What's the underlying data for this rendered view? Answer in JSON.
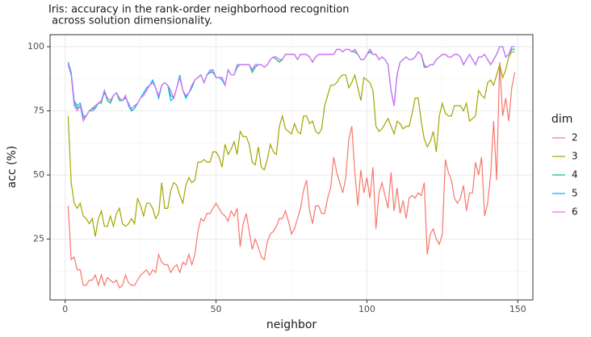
{
  "chart_data": {
    "type": "line",
    "title_lines": [
      "Iris: accuracy in the rank-order neighborhood recognition",
      " across solution dimensionality."
    ],
    "x_label": "neighbor",
    "y_label": "acc (%)",
    "legend_title": "dim",
    "legend_position": "right",
    "grid": true,
    "xlim": [
      -5,
      155
    ],
    "ylim": [
      1.3,
      104.7
    ],
    "xticks": [
      0,
      50,
      100,
      150
    ],
    "yticks": [
      25,
      50,
      75,
      100
    ],
    "x_minor_grid": [
      25,
      75,
      125
    ],
    "y_minor_grid": [
      12.5,
      37.5,
      62.5,
      87.5
    ],
    "x": [
      1,
      2,
      3,
      4,
      5,
      6,
      7,
      8,
      9,
      10,
      11,
      12,
      13,
      14,
      15,
      16,
      17,
      18,
      19,
      20,
      21,
      22,
      23,
      24,
      25,
      26,
      27,
      28,
      29,
      30,
      31,
      32,
      33,
      34,
      35,
      36,
      37,
      38,
      39,
      40,
      41,
      42,
      43,
      44,
      45,
      46,
      47,
      48,
      49,
      50,
      51,
      52,
      53,
      54,
      55,
      56,
      57,
      58,
      59,
      60,
      61,
      62,
      63,
      64,
      65,
      66,
      67,
      68,
      69,
      70,
      71,
      72,
      73,
      74,
      75,
      76,
      77,
      78,
      79,
      80,
      81,
      82,
      83,
      84,
      85,
      86,
      87,
      88,
      89,
      90,
      91,
      92,
      93,
      94,
      95,
      96,
      97,
      98,
      99,
      100,
      101,
      102,
      103,
      104,
      105,
      106,
      107,
      108,
      109,
      110,
      111,
      112,
      113,
      114,
      115,
      116,
      117,
      118,
      119,
      120,
      121,
      122,
      123,
      124,
      125,
      126,
      127,
      128,
      129,
      130,
      131,
      132,
      133,
      134,
      135,
      136,
      137,
      138,
      139,
      140,
      141,
      142,
      143,
      144,
      145,
      146,
      147,
      148,
      149
    ],
    "series": [
      {
        "name": "2",
        "color": "#F8766D",
        "values": [
          38,
          17,
          18,
          13,
          13,
          7,
          7,
          9,
          9,
          11,
          7,
          11,
          7,
          10,
          9,
          8,
          9,
          6,
          7,
          11,
          8,
          7,
          7,
          9,
          11,
          12,
          13,
          11,
          13,
          12,
          19,
          16,
          15,
          15,
          12,
          14,
          15,
          12,
          16,
          15,
          19,
          15,
          19,
          28,
          33,
          32,
          35,
          35,
          37,
          39,
          37,
          35,
          34,
          32,
          36,
          34,
          37,
          22,
          31,
          35,
          28,
          21,
          25,
          22,
          18,
          17,
          24,
          27,
          28,
          30,
          33,
          33,
          36,
          32,
          27,
          29,
          33,
          37,
          44,
          48,
          36,
          31,
          38,
          38,
          35,
          35,
          41,
          45,
          57,
          51,
          47,
          43,
          49,
          64,
          69,
          51,
          38,
          52,
          43,
          49,
          41,
          53,
          29,
          43,
          47,
          42,
          37,
          51,
          36,
          45,
          35,
          40,
          33,
          41,
          42,
          41,
          43,
          42,
          47,
          19,
          27,
          29,
          25,
          23,
          27,
          56,
          51,
          48,
          41,
          39,
          41,
          46,
          36,
          43,
          43,
          55,
          50,
          57,
          34,
          39,
          50,
          71,
          48,
          94,
          73,
          80,
          71,
          84,
          90
        ]
      },
      {
        "name": "3",
        "color": "#A3A500",
        "values": [
          73,
          47,
          39,
          37,
          39,
          34,
          33,
          31,
          33,
          26,
          33,
          36,
          30,
          30,
          34,
          30,
          35,
          37,
          31,
          30,
          31,
          33,
          31,
          41,
          38,
          34,
          39,
          39,
          37,
          33,
          35,
          47,
          37,
          37,
          44,
          47,
          46,
          42,
          39,
          46,
          49,
          47,
          48,
          55,
          55,
          56,
          55,
          55,
          59,
          59,
          57,
          53,
          62,
          58,
          60,
          63,
          58,
          67,
          65,
          65,
          62,
          55,
          54,
          61,
          53,
          52,
          56,
          62,
          59,
          58,
          69,
          73,
          68,
          67,
          66,
          70,
          67,
          66,
          73,
          73,
          70,
          71,
          67,
          66,
          68,
          77,
          81,
          85,
          85,
          86,
          88,
          89,
          89,
          84,
          86,
          89,
          84,
          79,
          88,
          87,
          86,
          83,
          69,
          67,
          68,
          70,
          72,
          69,
          66,
          71,
          70,
          68,
          69,
          69,
          74,
          80,
          80,
          71,
          64,
          61,
          63,
          67,
          59,
          73,
          78,
          74,
          73,
          73,
          77,
          77,
          77,
          75,
          78,
          71,
          72,
          73,
          83,
          81,
          80,
          86,
          87,
          85,
          89,
          93,
          88,
          91,
          96,
          98,
          98
        ]
      },
      {
        "name": "4",
        "color": "#00BF7D",
        "values": [
          93,
          89,
          78,
          76,
          77,
          72,
          73,
          75,
          76,
          77,
          78,
          78,
          83,
          79,
          78,
          81,
          82,
          79,
          79,
          81,
          77,
          75,
          76,
          78,
          80,
          81,
          83,
          85,
          86,
          84,
          80,
          85,
          86,
          85,
          81,
          80,
          84,
          88,
          83,
          80,
          82,
          85,
          87,
          88,
          89,
          86,
          89,
          90,
          90,
          88,
          88,
          88,
          85,
          91,
          89,
          89,
          92,
          93,
          93,
          93,
          93,
          90,
          92,
          93,
          93,
          92,
          93,
          95,
          96,
          95,
          94,
          95,
          97,
          97,
          97,
          97,
          95,
          97,
          97,
          97,
          96,
          94,
          96,
          97,
          97,
          97,
          97,
          97,
          97,
          99,
          99,
          98,
          99,
          99,
          98,
          98,
          97,
          95,
          95,
          97,
          98,
          97,
          97,
          95,
          96,
          95,
          93,
          83,
          77,
          89,
          94,
          95,
          96,
          95,
          95,
          96,
          98,
          97,
          92,
          92,
          93,
          93,
          95,
          96,
          97,
          97,
          96,
          96,
          97,
          97,
          96,
          93,
          95,
          97,
          95,
          93,
          96,
          96,
          97,
          95,
          93,
          95,
          97,
          100,
          100,
          96,
          97,
          99,
          99
        ]
      },
      {
        "name": "5",
        "color": "#00B0F6",
        "values": [
          94,
          90,
          79,
          77,
          78,
          73,
          73,
          75,
          75,
          76,
          78,
          79,
          82,
          80,
          79,
          81,
          82,
          80,
          79,
          80,
          78,
          75,
          76,
          78,
          80,
          82,
          84,
          85,
          87,
          84,
          80,
          85,
          86,
          85,
          79,
          80,
          84,
          89,
          83,
          80,
          82,
          84,
          87,
          88,
          89,
          86,
          89,
          90,
          91,
          88,
          88,
          87,
          85,
          91,
          89,
          89,
          93,
          93,
          93,
          93,
          93,
          91,
          93,
          93,
          93,
          92,
          93,
          95,
          96,
          96,
          95,
          95,
          97,
          97,
          97,
          97,
          95,
          97,
          97,
          97,
          96,
          94,
          96,
          97,
          97,
          97,
          97,
          97,
          97,
          99,
          99,
          98,
          99,
          99,
          98,
          99,
          97,
          95,
          95,
          97,
          99,
          97,
          97,
          95,
          96,
          95,
          93,
          83,
          77,
          89,
          94,
          95,
          96,
          95,
          95,
          96,
          98,
          97,
          93,
          92,
          93,
          93,
          95,
          96,
          97,
          97,
          96,
          96,
          97,
          97,
          96,
          93,
          95,
          97,
          95,
          93,
          96,
          96,
          97,
          95,
          93,
          95,
          97,
          100,
          100,
          96,
          97,
          100,
          100
        ]
      },
      {
        "name": "6",
        "color": "#E76BF3",
        "values": [
          93,
          89,
          77,
          75,
          77,
          71,
          73,
          75,
          75,
          77,
          78,
          79,
          83,
          80,
          79,
          81,
          82,
          80,
          79,
          81,
          77,
          76,
          77,
          78,
          80,
          81,
          83,
          85,
          86,
          84,
          81,
          85,
          86,
          85,
          83,
          80,
          84,
          88,
          83,
          81,
          82,
          85,
          87,
          88,
          89,
          86,
          89,
          91,
          91,
          88,
          88,
          88,
          85,
          91,
          89,
          89,
          93,
          93,
          93,
          93,
          93,
          91,
          93,
          93,
          93,
          92,
          93,
          95,
          96,
          96,
          95,
          95,
          97,
          97,
          97,
          97,
          95,
          97,
          97,
          97,
          96,
          94,
          96,
          97,
          97,
          97,
          97,
          97,
          97,
          99,
          99,
          98,
          99,
          99,
          98,
          99,
          97,
          95,
          95,
          97,
          99,
          97,
          97,
          95,
          96,
          95,
          93,
          83,
          77,
          89,
          94,
          95,
          96,
          95,
          95,
          96,
          98,
          97,
          93,
          92,
          93,
          93,
          95,
          96,
          97,
          97,
          96,
          96,
          97,
          97,
          96,
          93,
          95,
          97,
          95,
          93,
          96,
          96,
          97,
          95,
          93,
          95,
          97,
          100,
          100,
          96,
          97,
          100,
          100
        ]
      }
    ]
  }
}
